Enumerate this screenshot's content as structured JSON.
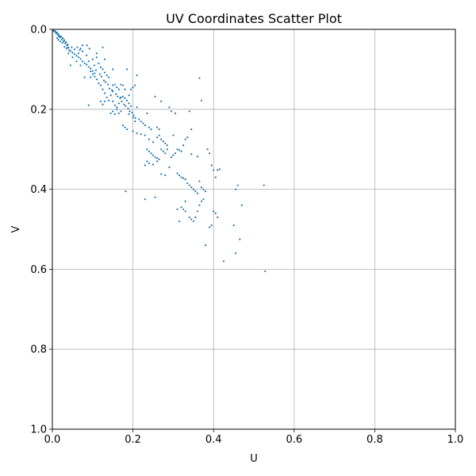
{
  "chart_data": {
    "type": "scatter",
    "title": "UV Coordinates Scatter Plot",
    "xlabel": "U",
    "ylabel": "V",
    "xlim": [
      0,
      1
    ],
    "ylim": [
      0,
      1
    ],
    "y_inverted": true,
    "grid": true,
    "x_ticks": [
      "0.0",
      "0.2",
      "0.4",
      "0.6",
      "0.8",
      "1.0"
    ],
    "y_ticks": [
      "0.0",
      "0.2",
      "0.4",
      "0.6",
      "0.8",
      "1.0"
    ],
    "point_color": "#1f77b4",
    "points": [
      [
        0.002,
        0.002
      ],
      [
        0.004,
        0.005
      ],
      [
        0.006,
        0.004
      ],
      [
        0.008,
        0.007
      ],
      [
        0.01,
        0.01
      ],
      [
        0.012,
        0.008
      ],
      [
        0.013,
        0.014
      ],
      [
        0.015,
        0.012
      ],
      [
        0.016,
        0.018
      ],
      [
        0.018,
        0.016
      ],
      [
        0.02,
        0.02
      ],
      [
        0.022,
        0.018
      ],
      [
        0.024,
        0.025
      ],
      [
        0.026,
        0.022
      ],
      [
        0.028,
        0.03
      ],
      [
        0.03,
        0.027
      ],
      [
        0.032,
        0.035
      ],
      [
        0.034,
        0.032
      ],
      [
        0.036,
        0.04
      ],
      [
        0.038,
        0.038
      ],
      [
        0.012,
        0.022
      ],
      [
        0.015,
        0.026
      ],
      [
        0.02,
        0.03
      ],
      [
        0.025,
        0.034
      ],
      [
        0.03,
        0.044
      ],
      [
        0.035,
        0.048
      ],
      [
        0.04,
        0.046
      ],
      [
        0.045,
        0.054
      ],
      [
        0.05,
        0.058
      ],
      [
        0.055,
        0.062
      ],
      [
        0.06,
        0.066
      ],
      [
        0.065,
        0.07
      ],
      [
        0.07,
        0.074
      ],
      [
        0.075,
        0.08
      ],
      [
        0.08,
        0.085
      ],
      [
        0.085,
        0.088
      ],
      [
        0.09,
        0.094
      ],
      [
        0.095,
        0.098
      ],
      [
        0.1,
        0.104
      ],
      [
        0.105,
        0.11
      ],
      [
        0.04,
        0.06
      ],
      [
        0.05,
        0.07
      ],
      [
        0.06,
        0.08
      ],
      [
        0.07,
        0.09
      ],
      [
        0.045,
        0.09
      ],
      [
        0.065,
        0.06
      ],
      [
        0.075,
        0.055
      ],
      [
        0.085,
        0.065
      ],
      [
        0.09,
        0.08
      ],
      [
        0.1,
        0.075
      ],
      [
        0.11,
        0.06
      ],
      [
        0.115,
        0.085
      ],
      [
        0.12,
        0.095
      ],
      [
        0.125,
        0.1
      ],
      [
        0.13,
        0.108
      ],
      [
        0.135,
        0.115
      ],
      [
        0.14,
        0.12
      ],
      [
        0.125,
        0.045
      ],
      [
        0.13,
        0.075
      ],
      [
        0.11,
        0.07
      ],
      [
        0.095,
        0.12
      ],
      [
        0.1,
        0.112
      ],
      [
        0.105,
        0.118
      ],
      [
        0.11,
        0.125
      ],
      [
        0.115,
        0.135
      ],
      [
        0.12,
        0.14
      ],
      [
        0.125,
        0.15
      ],
      [
        0.13,
        0.16
      ],
      [
        0.135,
        0.17
      ],
      [
        0.14,
        0.178
      ],
      [
        0.09,
        0.19
      ],
      [
        0.12,
        0.18
      ],
      [
        0.125,
        0.188
      ],
      [
        0.13,
        0.18
      ],
      [
        0.145,
        0.165
      ],
      [
        0.15,
        0.155
      ],
      [
        0.15,
        0.14
      ],
      [
        0.155,
        0.138
      ],
      [
        0.16,
        0.145
      ],
      [
        0.165,
        0.15
      ],
      [
        0.15,
        0.1
      ],
      [
        0.17,
        0.138
      ],
      [
        0.175,
        0.14
      ],
      [
        0.18,
        0.15
      ],
      [
        0.185,
        0.1
      ],
      [
        0.19,
        0.165
      ],
      [
        0.195,
        0.15
      ],
      [
        0.2,
        0.145
      ],
      [
        0.205,
        0.14
      ],
      [
        0.21,
        0.115
      ],
      [
        0.15,
        0.18
      ],
      [
        0.155,
        0.19
      ],
      [
        0.16,
        0.195
      ],
      [
        0.165,
        0.185
      ],
      [
        0.17,
        0.17
      ],
      [
        0.175,
        0.168
      ],
      [
        0.18,
        0.172
      ],
      [
        0.185,
        0.178
      ],
      [
        0.19,
        0.185
      ],
      [
        0.195,
        0.192
      ],
      [
        0.145,
        0.21
      ],
      [
        0.15,
        0.205
      ],
      [
        0.155,
        0.212
      ],
      [
        0.16,
        0.2
      ],
      [
        0.165,
        0.21
      ],
      [
        0.17,
        0.205
      ],
      [
        0.175,
        0.24
      ],
      [
        0.18,
        0.245
      ],
      [
        0.185,
        0.25
      ],
      [
        0.19,
        0.212
      ],
      [
        0.2,
        0.22
      ],
      [
        0.205,
        0.23
      ],
      [
        0.21,
        0.195
      ],
      [
        0.215,
        0.225
      ],
      [
        0.22,
        0.23
      ],
      [
        0.225,
        0.235
      ],
      [
        0.23,
        0.24
      ],
      [
        0.235,
        0.21
      ],
      [
        0.24,
        0.245
      ],
      [
        0.245,
        0.25
      ],
      [
        0.2,
        0.255
      ],
      [
        0.21,
        0.26
      ],
      [
        0.22,
        0.262
      ],
      [
        0.23,
        0.265
      ],
      [
        0.24,
        0.275
      ],
      [
        0.25,
        0.282
      ],
      [
        0.255,
        0.168
      ],
      [
        0.26,
        0.245
      ],
      [
        0.265,
        0.25
      ],
      [
        0.27,
        0.18
      ],
      [
        0.26,
        0.27
      ],
      [
        0.265,
        0.265
      ],
      [
        0.27,
        0.275
      ],
      [
        0.275,
        0.28
      ],
      [
        0.28,
        0.285
      ],
      [
        0.285,
        0.29
      ],
      [
        0.29,
        0.195
      ],
      [
        0.295,
        0.205
      ],
      [
        0.3,
        0.265
      ],
      [
        0.305,
        0.21
      ],
      [
        0.235,
        0.3
      ],
      [
        0.24,
        0.305
      ],
      [
        0.245,
        0.31
      ],
      [
        0.25,
        0.315
      ],
      [
        0.255,
        0.32
      ],
      [
        0.26,
        0.322
      ],
      [
        0.265,
        0.325
      ],
      [
        0.27,
        0.3
      ],
      [
        0.275,
        0.305
      ],
      [
        0.28,
        0.31
      ],
      [
        0.23,
        0.34
      ],
      [
        0.235,
        0.33
      ],
      [
        0.24,
        0.335
      ],
      [
        0.25,
        0.338
      ],
      [
        0.26,
        0.33
      ],
      [
        0.27,
        0.362
      ],
      [
        0.28,
        0.365
      ],
      [
        0.285,
        0.3
      ],
      [
        0.29,
        0.345
      ],
      [
        0.295,
        0.32
      ],
      [
        0.3,
        0.315
      ],
      [
        0.305,
        0.31
      ],
      [
        0.31,
        0.3
      ],
      [
        0.315,
        0.302
      ],
      [
        0.32,
        0.305
      ],
      [
        0.325,
        0.29
      ],
      [
        0.33,
        0.275
      ],
      [
        0.335,
        0.27
      ],
      [
        0.34,
        0.205
      ],
      [
        0.345,
        0.312
      ],
      [
        0.31,
        0.36
      ],
      [
        0.315,
        0.365
      ],
      [
        0.32,
        0.37
      ],
      [
        0.325,
        0.372
      ],
      [
        0.33,
        0.375
      ],
      [
        0.335,
        0.385
      ],
      [
        0.34,
        0.39
      ],
      [
        0.345,
        0.395
      ],
      [
        0.35,
        0.4
      ],
      [
        0.355,
        0.405
      ],
      [
        0.36,
        0.41
      ],
      [
        0.365,
        0.38
      ],
      [
        0.37,
        0.395
      ],
      [
        0.375,
        0.4
      ],
      [
        0.38,
        0.405
      ],
      [
        0.385,
        0.3
      ],
      [
        0.39,
        0.31
      ],
      [
        0.395,
        0.34
      ],
      [
        0.4,
        0.352
      ],
      [
        0.405,
        0.37
      ],
      [
        0.41,
        0.352
      ],
      [
        0.415,
        0.35
      ],
      [
        0.365,
        0.122
      ],
      [
        0.37,
        0.178
      ],
      [
        0.36,
        0.318
      ],
      [
        0.345,
        0.25
      ],
      [
        0.33,
        0.43
      ],
      [
        0.32,
        0.445
      ],
      [
        0.325,
        0.45
      ],
      [
        0.33,
        0.455
      ],
      [
        0.31,
        0.45
      ],
      [
        0.315,
        0.48
      ],
      [
        0.34,
        0.47
      ],
      [
        0.345,
        0.475
      ],
      [
        0.35,
        0.48
      ],
      [
        0.355,
        0.47
      ],
      [
        0.36,
        0.455
      ],
      [
        0.365,
        0.44
      ],
      [
        0.37,
        0.43
      ],
      [
        0.375,
        0.425
      ],
      [
        0.39,
        0.495
      ],
      [
        0.395,
        0.49
      ],
      [
        0.4,
        0.455
      ],
      [
        0.405,
        0.46
      ],
      [
        0.41,
        0.47
      ],
      [
        0.38,
        0.54
      ],
      [
        0.425,
        0.58
      ],
      [
        0.45,
        0.49
      ],
      [
        0.455,
        0.4
      ],
      [
        0.46,
        0.39
      ],
      [
        0.465,
        0.525
      ],
      [
        0.47,
        0.44
      ],
      [
        0.455,
        0.56
      ],
      [
        0.525,
        0.39
      ],
      [
        0.528,
        0.605
      ],
      [
        0.182,
        0.405
      ],
      [
        0.23,
        0.425
      ],
      [
        0.255,
        0.42
      ],
      [
        0.095,
        0.105
      ],
      [
        0.08,
        0.12
      ],
      [
        0.07,
        0.048
      ],
      [
        0.075,
        0.04
      ],
      [
        0.068,
        0.052
      ],
      [
        0.062,
        0.045
      ],
      [
        0.055,
        0.05
      ],
      [
        0.048,
        0.045
      ],
      [
        0.042,
        0.052
      ],
      [
        0.038,
        0.045
      ],
      [
        0.086,
        0.04
      ],
      [
        0.092,
        0.048
      ],
      [
        0.104,
        0.09
      ],
      [
        0.108,
        0.102
      ],
      [
        0.118,
        0.112
      ],
      [
        0.122,
        0.118
      ],
      [
        0.128,
        0.128
      ],
      [
        0.132,
        0.132
      ],
      [
        0.138,
        0.138
      ],
      [
        0.142,
        0.148
      ],
      [
        0.148,
        0.152
      ],
      [
        0.158,
        0.162
      ],
      [
        0.162,
        0.168
      ],
      [
        0.168,
        0.172
      ],
      [
        0.172,
        0.18
      ],
      [
        0.178,
        0.188
      ],
      [
        0.182,
        0.192
      ],
      [
        0.188,
        0.198
      ],
      [
        0.192,
        0.205
      ],
      [
        0.198,
        0.208
      ],
      [
        0.202,
        0.215
      ],
      [
        0.206,
        0.222
      ]
    ]
  }
}
